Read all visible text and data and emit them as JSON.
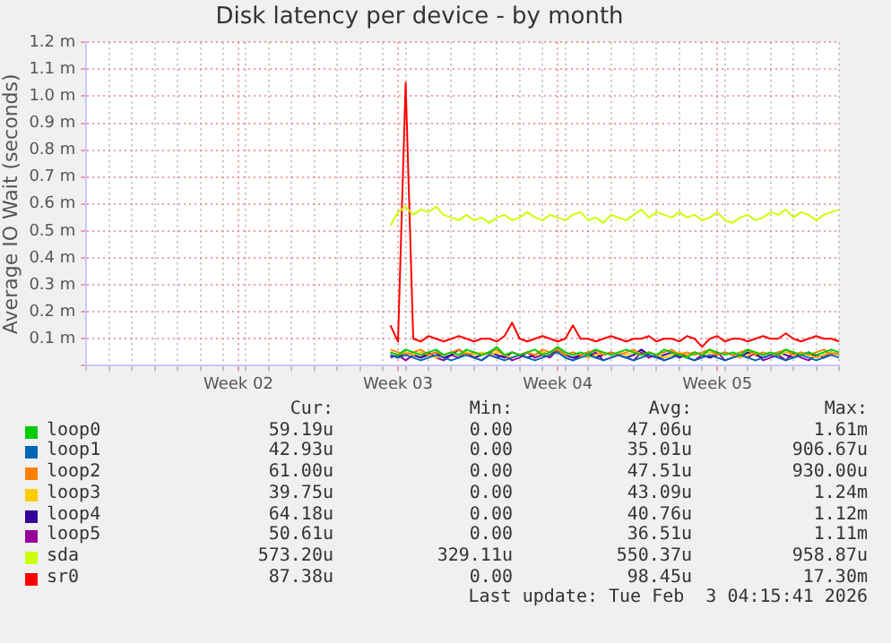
{
  "chart_data": {
    "type": "line",
    "title": "Disk latency per device - by month",
    "ylabel": "Average IO Wait (seconds)",
    "categories": [
      null,
      null,
      null,
      null,
      null,
      null,
      null,
      null,
      null,
      null,
      null,
      null,
      null,
      null,
      null,
      null,
      null,
      null,
      null,
      null,
      "Week 02",
      null,
      null,
      null,
      null,
      null,
      null,
      null,
      null,
      null,
      null,
      null,
      null,
      null,
      null,
      null,
      null,
      null,
      null,
      null,
      null,
      "Week 03",
      null,
      null,
      null,
      null,
      null,
      null,
      null,
      null,
      null,
      null,
      null,
      null,
      null,
      null,
      null,
      null,
      null,
      null,
      null,
      null,
      "Week 04",
      null,
      null,
      null,
      null,
      null,
      null,
      null,
      null,
      null,
      null,
      null,
      null,
      null,
      null,
      null,
      null,
      null,
      null,
      null,
      null,
      "Week 05",
      null,
      null,
      null,
      null,
      null,
      null,
      null,
      null,
      null,
      null,
      null,
      null,
      null,
      null,
      null,
      null
    ],
    "ylim": [
      0,
      1.2
    ],
    "yticks": [
      {
        "value": 0,
        "label": null
      },
      {
        "value": 0.1,
        "label": "0.1 m"
      },
      {
        "value": 0.2,
        "label": "0.2 m"
      },
      {
        "value": 0.3,
        "label": "0.3 m"
      },
      {
        "value": 0.4,
        "label": "0.4 m"
      },
      {
        "value": 0.5,
        "label": "0.5 m"
      },
      {
        "value": 0.6,
        "label": "0.6 m"
      },
      {
        "value": 0.7,
        "label": "0.7 m"
      },
      {
        "value": 0.8,
        "label": "0.8 m"
      },
      {
        "value": 0.9,
        "label": "0.9 m"
      },
      {
        "value": 1.0,
        "label": "1.0 m"
      },
      {
        "value": 1.1,
        "label": "1.1 m"
      },
      {
        "value": 1.2,
        "label": "1.2 m"
      }
    ],
    "grid": true,
    "legend": "bottom",
    "marker": "none",
    "line_style": "solid",
    "series": [
      {
        "name": "loop0",
        "color": "#00cc00",
        "values": [
          null,
          null,
          null,
          null,
          null,
          null,
          null,
          null,
          null,
          null,
          null,
          null,
          null,
          null,
          null,
          null,
          null,
          null,
          null,
          null,
          null,
          null,
          null,
          null,
          null,
          null,
          null,
          null,
          null,
          null,
          null,
          null,
          null,
          null,
          null,
          null,
          null,
          null,
          null,
          null,
          0.05,
          0.04,
          0.06,
          0.05,
          0.04,
          0.05,
          0.06,
          0.04,
          0.05,
          0.04,
          0.06,
          0.05,
          0.04,
          0.05,
          0.07,
          0.04,
          0.05,
          0.04,
          0.05,
          0.06,
          0.04,
          0.05,
          0.07,
          0.05,
          0.04,
          0.05,
          0.04,
          0.06,
          0.05,
          0.04,
          0.05,
          0.06,
          0.05,
          0.04,
          0.05,
          0.04,
          0.06,
          0.05,
          0.04,
          0.03,
          0.05,
          0.04,
          0.06,
          0.05,
          0.04,
          0.05,
          0.04,
          0.06,
          0.05,
          0.04,
          0.05,
          0.04,
          0.06,
          0.05,
          0.04,
          0.05,
          0.04,
          0.05,
          0.06,
          0.05
        ]
      },
      {
        "name": "loop1",
        "color": "#0066b3",
        "values": [
          null,
          null,
          null,
          null,
          null,
          null,
          null,
          null,
          null,
          null,
          null,
          null,
          null,
          null,
          null,
          null,
          null,
          null,
          null,
          null,
          null,
          null,
          null,
          null,
          null,
          null,
          null,
          null,
          null,
          null,
          null,
          null,
          null,
          null,
          null,
          null,
          null,
          null,
          null,
          null,
          0.04,
          0.03,
          0.04,
          0.03,
          0.02,
          0.03,
          0.04,
          0.03,
          0.02,
          0.03,
          0.04,
          0.03,
          0.02,
          0.04,
          0.03,
          0.02,
          0.03,
          0.04,
          0.03,
          0.02,
          0.03,
          0.04,
          0.05,
          0.03,
          0.02,
          0.03,
          0.04,
          0.03,
          0.02,
          0.03,
          0.04,
          0.03,
          0.02,
          0.03,
          0.04,
          0.03,
          0.02,
          0.03,
          0.04,
          0.03,
          0.02,
          0.03,
          0.04,
          0.03,
          0.02,
          0.03,
          0.04,
          0.03,
          0.02,
          0.03,
          0.04,
          0.03,
          0.02,
          0.03,
          0.04,
          0.03,
          0.02,
          0.03,
          0.04,
          0.03
        ]
      },
      {
        "name": "loop2",
        "color": "#ff8000",
        "values": [
          null,
          null,
          null,
          null,
          null,
          null,
          null,
          null,
          null,
          null,
          null,
          null,
          null,
          null,
          null,
          null,
          null,
          null,
          null,
          null,
          null,
          null,
          null,
          null,
          null,
          null,
          null,
          null,
          null,
          null,
          null,
          null,
          null,
          null,
          null,
          null,
          null,
          null,
          null,
          null,
          0.06,
          0.05,
          0.04,
          0.05,
          0.06,
          0.04,
          0.05,
          0.04,
          0.05,
          0.06,
          0.04,
          0.05,
          0.04,
          0.05,
          0.06,
          0.04,
          0.05,
          0.04,
          0.05,
          0.04,
          0.06,
          0.05,
          0.06,
          0.04,
          0.05,
          0.04,
          0.05,
          0.06,
          0.04,
          0.05,
          0.04,
          0.05,
          0.06,
          0.04,
          0.05,
          0.04,
          0.05,
          0.06,
          0.04,
          0.05,
          0.04,
          0.05,
          0.06,
          0.04,
          0.05,
          0.04,
          0.05,
          0.06,
          0.04,
          0.05,
          0.04,
          0.05,
          0.06,
          0.04,
          0.05,
          0.04,
          0.05,
          0.06,
          0.04,
          0.05
        ]
      },
      {
        "name": "loop3",
        "color": "#ffcc00",
        "values": [
          null,
          null,
          null,
          null,
          null,
          null,
          null,
          null,
          null,
          null,
          null,
          null,
          null,
          null,
          null,
          null,
          null,
          null,
          null,
          null,
          null,
          null,
          null,
          null,
          null,
          null,
          null,
          null,
          null,
          null,
          null,
          null,
          null,
          null,
          null,
          null,
          null,
          null,
          null,
          null,
          0.05,
          0.04,
          0.05,
          0.04,
          0.05,
          0.04,
          0.03,
          0.04,
          0.05,
          0.04,
          0.05,
          0.04,
          0.05,
          0.04,
          0.05,
          0.04,
          0.03,
          0.04,
          0.05,
          0.04,
          0.05,
          0.04,
          0.05,
          0.04,
          0.05,
          0.04,
          0.03,
          0.04,
          0.05,
          0.04,
          0.05,
          0.04,
          0.05,
          0.04,
          0.05,
          0.04,
          0.03,
          0.04,
          0.05,
          0.04,
          0.05,
          0.04,
          0.05,
          0.04,
          0.05,
          0.04,
          0.03,
          0.04,
          0.05,
          0.04,
          0.05,
          0.04,
          0.05,
          0.04,
          0.05,
          0.04,
          0.03,
          0.04,
          0.05,
          0.04
        ]
      },
      {
        "name": "loop4",
        "color": "#330099",
        "values": [
          null,
          null,
          null,
          null,
          null,
          null,
          null,
          null,
          null,
          null,
          null,
          null,
          null,
          null,
          null,
          null,
          null,
          null,
          null,
          null,
          null,
          null,
          null,
          null,
          null,
          null,
          null,
          null,
          null,
          null,
          null,
          null,
          null,
          null,
          null,
          null,
          null,
          null,
          null,
          null,
          0.04,
          0.03,
          0.05,
          0.04,
          0.03,
          0.04,
          0.05,
          0.03,
          0.04,
          0.06,
          0.04,
          0.03,
          0.04,
          0.05,
          0.04,
          0.03,
          0.05,
          0.04,
          0.03,
          0.04,
          0.05,
          0.04,
          0.06,
          0.04,
          0.03,
          0.04,
          0.05,
          0.03,
          0.04,
          0.05,
          0.04,
          0.03,
          0.04,
          0.06,
          0.04,
          0.03,
          0.04,
          0.05,
          0.03,
          0.04,
          0.05,
          0.04,
          0.03,
          0.04,
          0.05,
          0.04,
          0.03,
          0.05,
          0.04,
          0.03,
          0.04,
          0.05,
          0.04,
          0.03,
          0.04,
          0.05,
          0.03,
          0.04,
          0.05,
          0.04
        ]
      },
      {
        "name": "loop5",
        "color": "#990099",
        "values": [
          null,
          null,
          null,
          null,
          null,
          null,
          null,
          null,
          null,
          null,
          null,
          null,
          null,
          null,
          null,
          null,
          null,
          null,
          null,
          null,
          null,
          null,
          null,
          null,
          null,
          null,
          null,
          null,
          null,
          null,
          null,
          null,
          null,
          null,
          null,
          null,
          null,
          null,
          null,
          null,
          0.03,
          0.04,
          0.02,
          0.04,
          0.03,
          0.05,
          0.03,
          0.02,
          0.04,
          0.03,
          0.05,
          0.03,
          0.02,
          0.04,
          0.03,
          0.04,
          0.02,
          0.03,
          0.05,
          0.03,
          0.04,
          0.03,
          0.06,
          0.03,
          0.02,
          0.04,
          0.03,
          0.05,
          0.02,
          0.03,
          0.04,
          0.03,
          0.02,
          0.05,
          0.03,
          0.04,
          0.02,
          0.03,
          0.05,
          0.03,
          0.02,
          0.04,
          0.03,
          0.05,
          0.02,
          0.03,
          0.04,
          0.03,
          0.05,
          0.02,
          0.03,
          0.04,
          0.02,
          0.05,
          0.03,
          0.02,
          0.04,
          0.03,
          0.05,
          0.04
        ]
      },
      {
        "name": "sda",
        "color": "#ccff00",
        "values": [
          null,
          null,
          null,
          null,
          null,
          null,
          null,
          null,
          null,
          null,
          null,
          null,
          null,
          null,
          null,
          null,
          null,
          null,
          null,
          null,
          null,
          null,
          null,
          null,
          null,
          null,
          null,
          null,
          null,
          null,
          null,
          null,
          null,
          null,
          null,
          null,
          null,
          null,
          null,
          null,
          0.52,
          0.57,
          0.59,
          0.56,
          0.58,
          0.57,
          0.59,
          0.56,
          0.55,
          0.54,
          0.56,
          0.54,
          0.55,
          0.53,
          0.55,
          0.56,
          0.54,
          0.55,
          0.57,
          0.55,
          0.54,
          0.56,
          0.55,
          0.54,
          0.56,
          0.57,
          0.54,
          0.55,
          0.53,
          0.56,
          0.55,
          0.54,
          0.56,
          0.58,
          0.55,
          0.57,
          0.56,
          0.55,
          0.57,
          0.55,
          0.56,
          0.54,
          0.55,
          0.57,
          0.54,
          0.53,
          0.55,
          0.56,
          0.54,
          0.55,
          0.57,
          0.56,
          0.58,
          0.55,
          0.57,
          0.56,
          0.54,
          0.56,
          0.57,
          0.58
        ]
      },
      {
        "name": "sr0",
        "color": "#ff0000",
        "values": [
          null,
          null,
          null,
          null,
          null,
          null,
          null,
          null,
          null,
          null,
          null,
          null,
          null,
          null,
          null,
          null,
          null,
          null,
          null,
          null,
          null,
          null,
          null,
          null,
          null,
          null,
          null,
          null,
          null,
          null,
          null,
          null,
          null,
          null,
          null,
          null,
          null,
          null,
          null,
          null,
          0.15,
          0.09,
          1.05,
          0.1,
          0.09,
          0.11,
          0.1,
          0.09,
          0.1,
          0.11,
          0.1,
          0.09,
          0.1,
          0.1,
          0.09,
          0.11,
          0.16,
          0.1,
          0.09,
          0.1,
          0.11,
          0.1,
          0.09,
          0.1,
          0.15,
          0.1,
          0.1,
          0.09,
          0.1,
          0.11,
          0.1,
          0.09,
          0.1,
          0.1,
          0.11,
          0.09,
          0.1,
          0.1,
          0.09,
          0.11,
          0.1,
          0.07,
          0.1,
          0.11,
          0.09,
          0.1,
          0.1,
          0.09,
          0.1,
          0.11,
          0.1,
          0.1,
          0.12,
          0.1,
          0.09,
          0.1,
          0.11,
          0.1,
          0.1,
          0.09
        ]
      }
    ],
    "annotations": [
      "Cur:",
      "Min:",
      "Avg:",
      "Max:",
      "59.19u",
      "0.00",
      "47.06u",
      "1.61m",
      "42.93u",
      "0.00",
      "35.01u",
      "906.67u",
      "61.00u",
      "0.00",
      "47.51u",
      "930.00u",
      "39.75u",
      "0.00",
      "43.09u",
      "1.24m",
      "64.18u",
      "0.00",
      "40.76u",
      "1.12m",
      "50.61u",
      "0.00",
      "36.51u",
      "1.11m",
      "573.20u",
      "329.11u",
      "550.37u",
      "958.87u",
      "87.38u",
      "0.00",
      "98.45u",
      "17.30m",
      "Last update: Tue Feb  3 04:15:41 2026"
    ]
  }
}
